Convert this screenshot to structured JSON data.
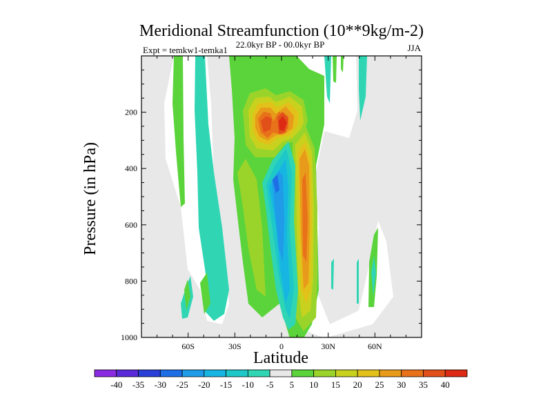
{
  "chart_data": {
    "type": "contour",
    "title": "Meridional Streamfunction (10**9kg/m-2)",
    "experiment_label": "Expt = temkw1-temka1",
    "period_label": "22.0kyr BP - 00.0kyr BP",
    "season_label": "JJA",
    "xlabel": "Latitude",
    "ylabel": "Pressure (in hPa)",
    "xlim": [
      -90,
      90
    ],
    "ylim": [
      1000,
      0
    ],
    "x_ticks": [
      {
        "value": -60,
        "label": "60S"
      },
      {
        "value": -30,
        "label": "30S"
      },
      {
        "value": 0,
        "label": "0"
      },
      {
        "value": 30,
        "label": "30N"
      },
      {
        "value": 60,
        "label": "60N"
      }
    ],
    "y_ticks": [
      {
        "value": 200,
        "label": "200"
      },
      {
        "value": 400,
        "label": "400"
      },
      {
        "value": 600,
        "label": "600"
      },
      {
        "value": 800,
        "label": "800"
      },
      {
        "value": 1000,
        "label": "1000"
      }
    ],
    "colorbar": {
      "levels": [
        "-40",
        "-35",
        "-30",
        "-25",
        "-20",
        "-15",
        "-10",
        "-5",
        "5",
        "10",
        "15",
        "20",
        "25",
        "30",
        "35",
        "40"
      ],
      "colors": [
        "#8a2be2",
        "#5a2ad8",
        "#2a3fd8",
        "#1e6ee6",
        "#1f9be8",
        "#17b6e2",
        "#1ec8c8",
        "#30d6b4",
        "#e8e8e8",
        "#5ad43a",
        "#9ad42a",
        "#c8d21e",
        "#e2c21a",
        "#e89a1a",
        "#e8721a",
        "#e2501a",
        "#dc2a14"
      ]
    },
    "features": [
      {
        "name": "Tropical positive cell core (upper)",
        "lat": -10,
        "pressure": 230,
        "value": 35
      },
      {
        "name": "Tropical positive cell core (upper)",
        "lat": 2,
        "pressure": 220,
        "value": 40
      },
      {
        "name": "Positive column (NH tropics)",
        "lat": 15,
        "pressure": 600,
        "value": 30
      },
      {
        "name": "Negative column (equatorial)",
        "lat": 0,
        "pressure": 500,
        "value": -20
      }
    ]
  }
}
